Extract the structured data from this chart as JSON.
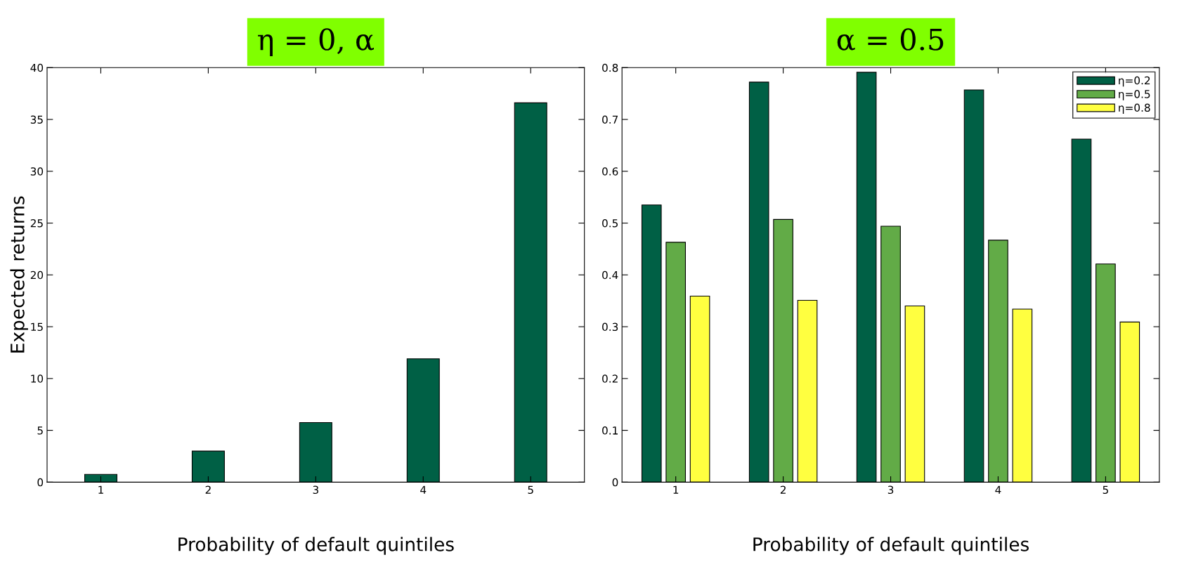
{
  "chart_data": [
    {
      "type": "bar",
      "title": "η = 0, α",
      "xlabel": "Probability of default quintiles",
      "ylabel": "Expected returns",
      "categories": [
        "1",
        "2",
        "3",
        "4",
        "5"
      ],
      "series": [
        {
          "color": "#006045",
          "values": [
            0.75,
            3.0,
            5.75,
            11.9,
            36.6
          ]
        }
      ],
      "ylim": [
        0,
        40
      ],
      "yticks": [
        0,
        5,
        10,
        15,
        20,
        25,
        30,
        35,
        40
      ],
      "grid": false,
      "legend": false
    },
    {
      "type": "bar",
      "title": "α = 0.5",
      "xlabel": "Probability of default quintiles",
      "categories": [
        "1",
        "2",
        "3",
        "4",
        "5"
      ],
      "series": [
        {
          "name": "η=0.2",
          "color": "#006045",
          "values": [
            0.535,
            0.772,
            0.791,
            0.757,
            0.662
          ]
        },
        {
          "name": "η=0.5",
          "color": "#62ab47",
          "values": [
            0.463,
            0.507,
            0.494,
            0.467,
            0.421
          ]
        },
        {
          "name": "η=0.8",
          "color": "#ffff40",
          "values": [
            0.359,
            0.351,
            0.34,
            0.334,
            0.309
          ]
        }
      ],
      "ylim": [
        0,
        0.8
      ],
      "yticks": [
        0,
        0.1,
        0.2,
        0.3,
        0.4,
        0.5,
        0.6,
        0.7,
        0.8
      ],
      "grid": false,
      "legend": "top right"
    }
  ]
}
